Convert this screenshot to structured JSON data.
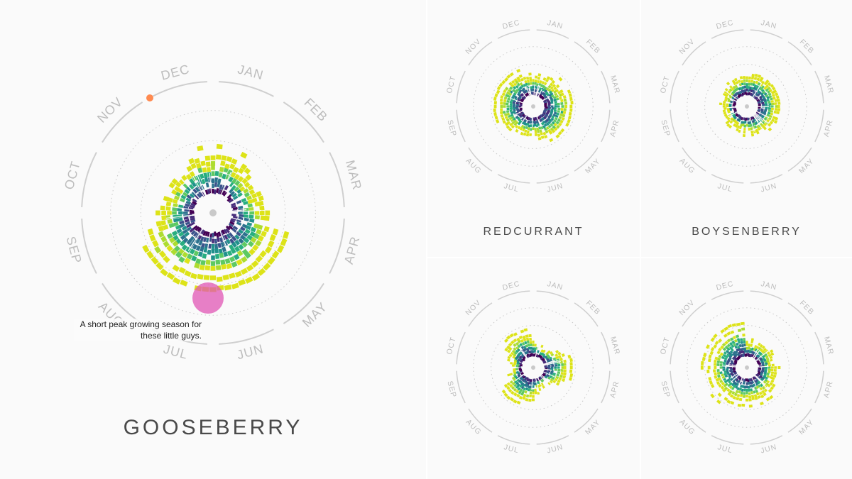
{
  "months": [
    "JAN",
    "FEB",
    "MAR",
    "APR",
    "MAY",
    "JUN",
    "JUL",
    "AUG",
    "SEP",
    "OCT",
    "NOV",
    "DEC"
  ],
  "palette": [
    "#440154",
    "#472d7b",
    "#3b528b",
    "#2c728e",
    "#21918c",
    "#28ae80",
    "#5ec962",
    "#addc30",
    "#dde318"
  ],
  "accent_dot": "#ff8a50",
  "highlight_fill": "#e056b4",
  "annotation": {
    "line1": "A short peak growing season for",
    "line2": "these little guys."
  },
  "chart_data": [
    {
      "type": "radial-heatmap",
      "title": "GOOSEBERRY",
      "months": [
        "JAN",
        "FEB",
        "MAR",
        "APR",
        "MAY",
        "JUN",
        "JUL",
        "AUG",
        "SEP",
        "OCT",
        "NOV",
        "DEC"
      ],
      "peak_months": [
        "JUL",
        "AUG"
      ],
      "annotation": "A short peak growing season for these little guys."
    },
    {
      "type": "radial-heatmap",
      "title": "REDCURRANT",
      "months": [
        "JAN",
        "FEB",
        "MAR",
        "APR",
        "MAY",
        "JUN",
        "JUL",
        "AUG",
        "SEP",
        "OCT",
        "NOV",
        "DEC"
      ]
    },
    {
      "type": "radial-heatmap",
      "title": "BOYSENBERRY",
      "months": [
        "JAN",
        "FEB",
        "MAR",
        "APR",
        "MAY",
        "JUN",
        "JUL",
        "AUG",
        "SEP",
        "OCT",
        "NOV",
        "DEC"
      ]
    },
    {
      "type": "radial-heatmap",
      "title": "",
      "months": [
        "JAN",
        "FEB",
        "MAR",
        "APR",
        "MAY",
        "JUN",
        "JUL",
        "AUG",
        "SEP",
        "OCT",
        "NOV",
        "DEC"
      ]
    },
    {
      "type": "radial-heatmap",
      "title": "",
      "months": [
        "JAN",
        "FEB",
        "MAR",
        "APR",
        "MAY",
        "JUN",
        "JUL",
        "AUG",
        "SEP",
        "OCT",
        "NOV",
        "DEC"
      ]
    }
  ]
}
